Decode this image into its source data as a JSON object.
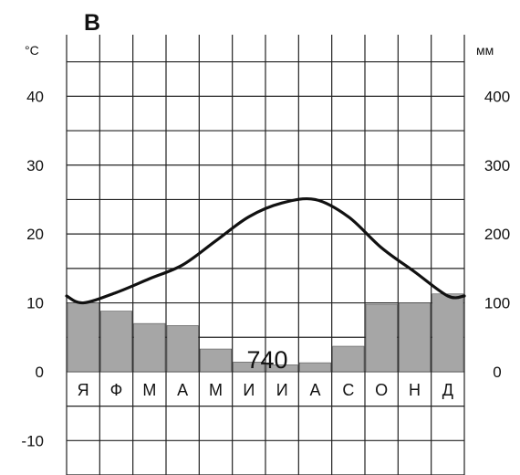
{
  "chart_data": {
    "type": "bar",
    "panel_letter": "В",
    "left_unit": "°С",
    "right_unit": "мм",
    "categories": [
      "Я",
      "Ф",
      "М",
      "А",
      "М",
      "И",
      "И",
      "А",
      "С",
      "О",
      "Н",
      "Д"
    ],
    "temperature": {
      "type": "line",
      "values": [
        10.0,
        11.5,
        13.5,
        15.5,
        19.0,
        22.5,
        24.5,
        25.0,
        22.5,
        18.0,
        14.5,
        11.0
      ],
      "ylim": [
        -15,
        50
      ],
      "ticks": [
        -10,
        0,
        10,
        20,
        30,
        40
      ]
    },
    "precipitation": {
      "type": "bar",
      "values": [
        100,
        88,
        70,
        67,
        33,
        14,
        10,
        13,
        37,
        98,
        100,
        113
      ],
      "ylim": [
        -150,
        500
      ],
      "ticks": [
        0,
        100,
        200,
        300,
        400
      ]
    },
    "annual_precipitation_label": "740",
    "grid": true,
    "colors": {
      "bar_fill": "#a6a6a6",
      "line": "#111111",
      "grid": "#222222"
    }
  }
}
